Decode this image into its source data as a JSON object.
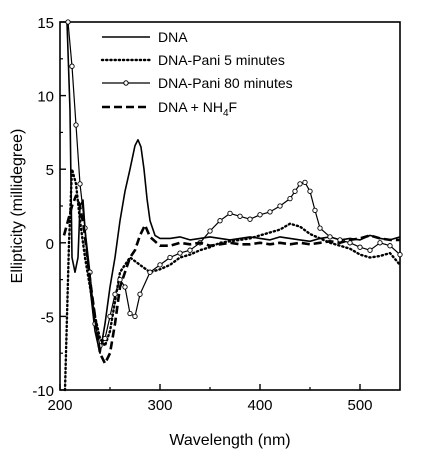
{
  "chart_data": {
    "type": "line",
    "title": "",
    "xlabel": "Wavelength (nm)",
    "ylabel": "Ellipticity (millidegree)",
    "xlim": [
      200,
      540
    ],
    "ylim": [
      -10,
      15
    ],
    "x_ticks": [
      "200",
      "300",
      "400",
      "500"
    ],
    "y_ticks": [
      "15",
      "10",
      "5",
      "0",
      "-5",
      "-10"
    ],
    "legend_position": "top-right",
    "series": [
      {
        "name": "DNA",
        "style": "solid",
        "x": [
          207,
          210,
          212,
          215,
          218,
          220,
          223,
          226,
          230,
          235,
          240,
          245,
          250,
          255,
          260,
          265,
          270,
          275,
          278,
          281,
          284,
          287,
          290,
          295,
          300,
          310,
          320,
          330,
          340,
          350,
          360,
          370,
          380,
          390,
          400,
          410,
          420,
          430,
          440,
          450,
          460,
          470,
          480,
          490,
          500,
          510,
          520,
          530,
          540
        ],
        "y": [
          15,
          9,
          -1,
          -2,
          -1,
          2.5,
          2.9,
          0,
          -3,
          -6,
          -7.5,
          -5.5,
          -3,
          -1,
          1.5,
          3.5,
          5,
          6.6,
          7,
          6.5,
          5,
          3,
          1.5,
          0.5,
          0.3,
          0.3,
          0.4,
          0.2,
          0.3,
          0.4,
          0.3,
          0.2,
          0.3,
          0.4,
          0.3,
          0.2,
          0.4,
          0.3,
          0.2,
          0.1,
          0.3,
          0.4,
          0.2,
          0.3,
          0.2,
          0.5,
          0.3,
          0.2,
          0.4
        ]
      },
      {
        "name": "DNA-Pani 5 minutes",
        "style": "dotted",
        "x": [
          205,
          207,
          209,
          212,
          216,
          220,
          225,
          230,
          235,
          240,
          245,
          250,
          255,
          260,
          270,
          280,
          290,
          300,
          310,
          320,
          330,
          340,
          350,
          360,
          370,
          380,
          390,
          400,
          410,
          420,
          430,
          440,
          450,
          460,
          470,
          480,
          490,
          500,
          510,
          520,
          530,
          540
        ],
        "y": [
          -10,
          -5,
          0,
          5,
          4,
          1.5,
          -1,
          -3,
          -5,
          -6.5,
          -7,
          -6,
          -4,
          -2,
          -1,
          -1.5,
          -2,
          -1.8,
          -1.5,
          -1,
          -0.8,
          -0.5,
          -0.3,
          0,
          0.1,
          0.2,
          0.3,
          0.5,
          0.7,
          0.9,
          1.3,
          1.1,
          0.6,
          0.3,
          0,
          -0.2,
          -0.4,
          -0.8,
          -1.0,
          -0.9,
          -0.7,
          -1.5
        ]
      },
      {
        "name": "DNA-Pani 80 minutes",
        "style": "line-circles",
        "x": [
          208,
          212,
          216,
          220,
          225,
          230,
          235,
          240,
          245,
          250,
          255,
          260,
          265,
          270,
          275,
          280,
          290,
          300,
          310,
          320,
          330,
          340,
          350,
          360,
          370,
          380,
          390,
          400,
          410,
          420,
          430,
          435,
          440,
          445,
          450,
          455,
          460,
          470,
          480,
          490,
          500,
          510,
          520,
          530,
          540
        ],
        "y": [
          15,
          12,
          8,
          4,
          1,
          -2,
          -5.5,
          -7,
          -6.5,
          -5,
          -3.5,
          -2.5,
          -3,
          -4.8,
          -5,
          -3.5,
          -2,
          -1.5,
          -1,
          -0.7,
          -0.5,
          0,
          0.8,
          1.5,
          2,
          1.8,
          1.6,
          1.9,
          2.1,
          2.5,
          3,
          3.5,
          4,
          4.1,
          3.5,
          2.2,
          1,
          0.4,
          0.2,
          0,
          -0.3,
          -0.5,
          0,
          -0.2,
          -0.8
        ]
      },
      {
        "name": "DNA + NH4F",
        "style": "dashed",
        "x": [
          204,
          208,
          212,
          216,
          220,
          224,
          230,
          235,
          240,
          245,
          250,
          255,
          260,
          265,
          270,
          275,
          280,
          285,
          290,
          300,
          310,
          320,
          330,
          340,
          350,
          360,
          370,
          380,
          390,
          400,
          410,
          420,
          430,
          440,
          450,
          460,
          470,
          480,
          490,
          500,
          510,
          520,
          530,
          540
        ],
        "y": [
          0.5,
          1.5,
          2.5,
          3.2,
          2.5,
          1,
          -2.5,
          -5,
          -7.5,
          -8.2,
          -7.5,
          -5.5,
          -3,
          -2,
          -1,
          -0.5,
          0.5,
          1.2,
          0.4,
          -0.2,
          -0.2,
          0,
          -0.1,
          0,
          -0.2,
          -0.1,
          0,
          -0.1,
          -0.1,
          0,
          -0.1,
          0,
          -0.1,
          0,
          -0.1,
          0,
          0.1,
          0,
          0.2,
          0.3,
          0.5,
          0.3,
          0.2,
          0.2
        ]
      }
    ],
    "legend": [
      {
        "label": "DNA"
      },
      {
        "label": "DNA-Pani 5 minutes"
      },
      {
        "label": "DNA-Pani 80 minutes"
      },
      {
        "label_main": "DNA + NH",
        "label_sub": "4",
        "label_end": "F"
      }
    ]
  }
}
